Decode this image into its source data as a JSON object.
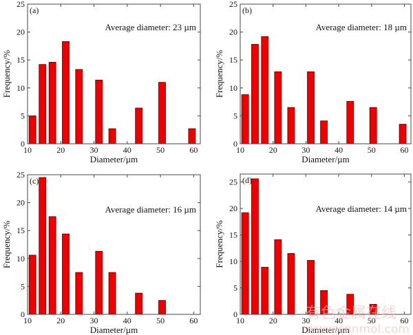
{
  "figure": {
    "watermark_line1": "有色金属在线",
    "watermark_line2": "www.cnnmol.com"
  },
  "chart_data": [
    {
      "type": "bar",
      "panel_label": "(a)",
      "annotation": "Average diameter: 23 µm",
      "xlabel": "Diameter/µm",
      "ylabel": "Frequency/%",
      "xlim": [
        10,
        62
      ],
      "ylim": [
        0,
        25
      ],
      "xticks": [
        10,
        20,
        30,
        40,
        50,
        60
      ],
      "yticks": [
        0,
        5,
        10,
        15,
        20,
        25
      ],
      "x": [
        11.5,
        14.5,
        17.5,
        21.5,
        25.5,
        31.5,
        35.5,
        43.5,
        50.5,
        59.5
      ],
      "values": [
        5.0,
        14.2,
        14.6,
        18.3,
        13.3,
        11.4,
        2.7,
        6.4,
        11.0,
        2.7
      ]
    },
    {
      "type": "bar",
      "panel_label": "(b)",
      "annotation": "Average diameter: 18 µm",
      "xlabel": "Diameter/µm",
      "ylabel": "Frequency/%",
      "xlim": [
        10,
        62
      ],
      "ylim": [
        0,
        25
      ],
      "xticks": [
        10,
        20,
        30,
        40,
        50,
        60
      ],
      "yticks": [
        0,
        5,
        10,
        15,
        20,
        25
      ],
      "x": [
        11.5,
        14.5,
        17.5,
        21.5,
        25.5,
        31.5,
        35.5,
        43.5,
        50.5,
        59.5
      ],
      "values": [
        8.8,
        17.8,
        19.2,
        12.9,
        6.5,
        12.9,
        4.1,
        7.6,
        6.5,
        3.5
      ]
    },
    {
      "type": "bar",
      "panel_label": "(c)",
      "annotation": "Average diameter: 16 µm",
      "xlabel": "Diameter/µm",
      "ylabel": "Frequency/%",
      "xlim": [
        10,
        62
      ],
      "ylim": [
        0,
        25
      ],
      "xticks": [
        10,
        20,
        30,
        40,
        50,
        60
      ],
      "yticks": [
        0,
        5,
        10,
        15,
        20,
        25
      ],
      "x": [
        11.5,
        14.5,
        17.5,
        21.5,
        25.5,
        31.5,
        35.5,
        43.5,
        50.5
      ],
      "values": [
        10.6,
        24.5,
        17.5,
        14.4,
        7.5,
        11.3,
        7.5,
        3.8,
        2.5
      ]
    },
    {
      "type": "bar",
      "panel_label": "(d)",
      "annotation": "Average diameter: 14 µm",
      "xlabel": "Diameter/µm",
      "ylabel": "Frequency/%",
      "xlim": [
        10,
        62
      ],
      "ylim": [
        0,
        26.5
      ],
      "xticks": [
        10,
        20,
        30,
        40,
        50,
        60
      ],
      "yticks": [
        0,
        5,
        10,
        15,
        20,
        25
      ],
      "x": [
        11.5,
        14.5,
        17.5,
        21.5,
        25.5,
        31.5,
        35.5,
        43.5,
        50.5
      ],
      "values": [
        19.2,
        25.6,
        8.9,
        14.1,
        11.5,
        10.2,
        4.5,
        3.8,
        1.9
      ]
    }
  ]
}
